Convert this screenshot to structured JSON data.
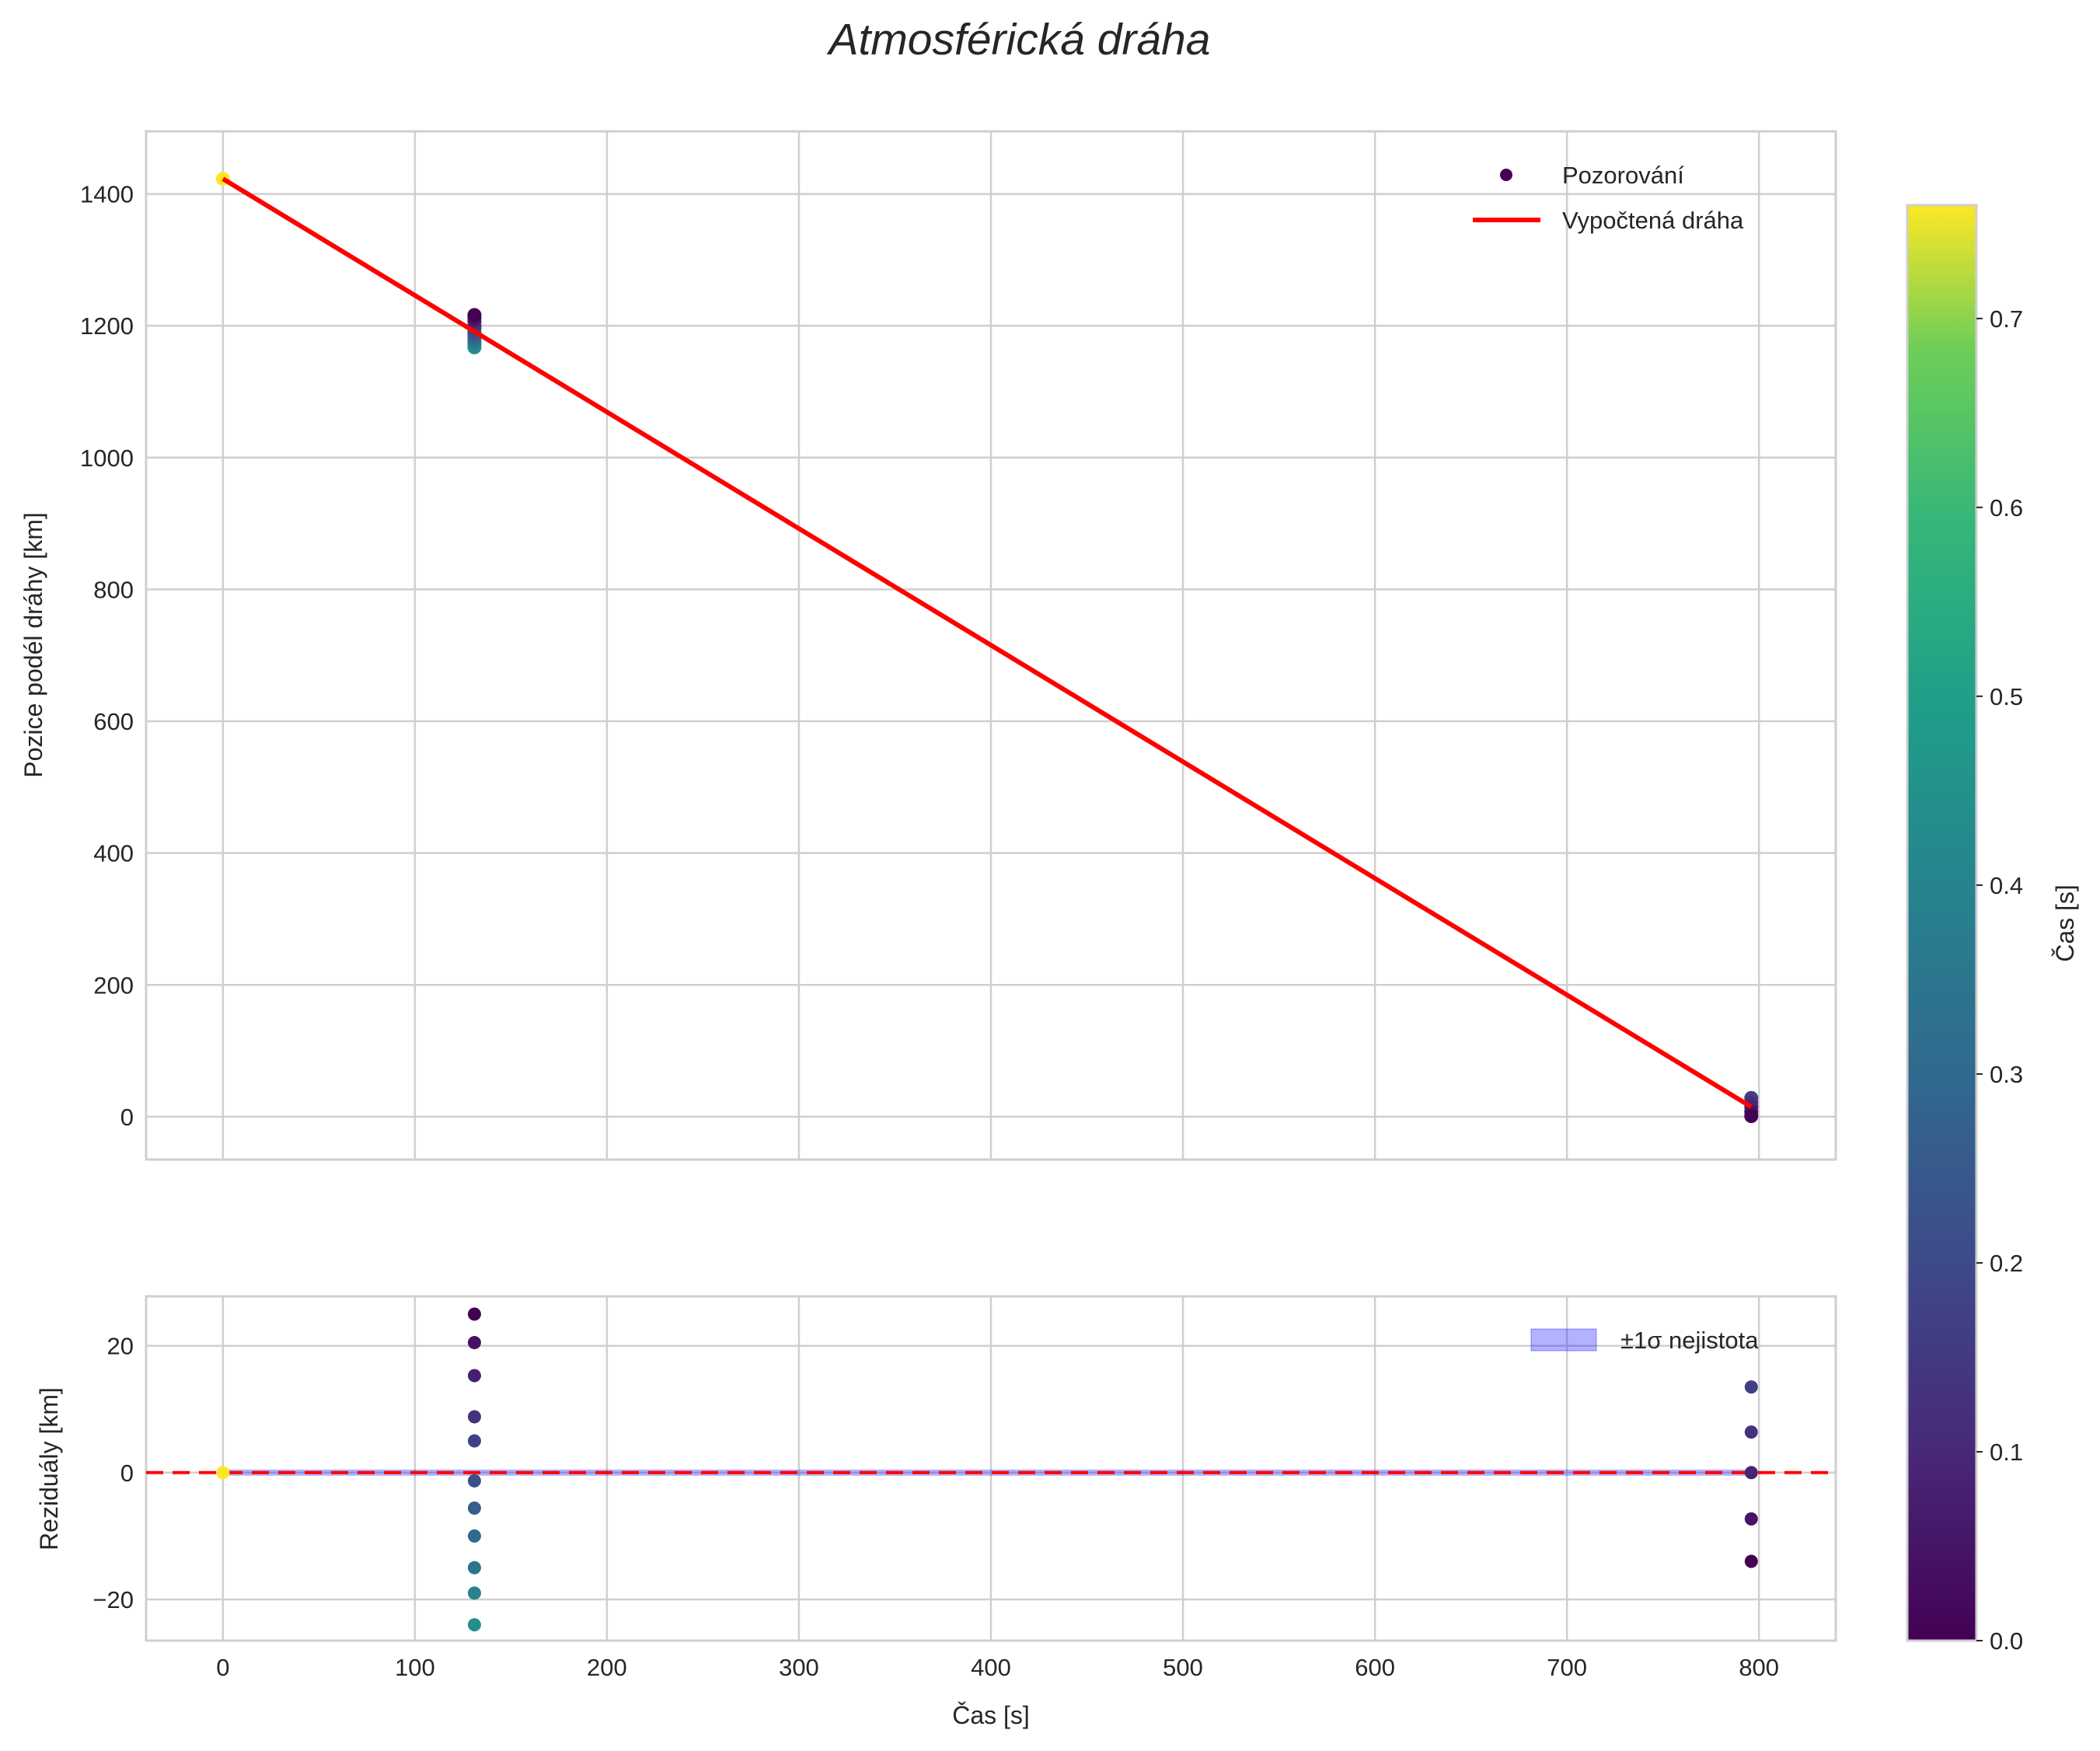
{
  "chart_data": {
    "type": "scatter",
    "title": "Atmosférická dráha",
    "colormap": "viridis",
    "colorbar": {
      "label": "Čas [s]",
      "range": [
        0,
        0.76
      ],
      "ticks": [
        "0.0",
        "0.1",
        "0.2",
        "0.3",
        "0.4",
        "0.5",
        "0.6",
        "0.7"
      ]
    },
    "top": {
      "ylabel": "Pozice podél dráhy [km]",
      "xlim": [
        -40,
        840
      ],
      "ylim": [
        -65,
        1495
      ],
      "yticks": [
        "0",
        "200",
        "400",
        "600",
        "800",
        "1000",
        "1200",
        "1400"
      ],
      "legend": {
        "placement": "top-right",
        "scatter": "Pozorování",
        "line": "Vypočtená dráha"
      },
      "fit_line": {
        "x": [
          0,
          796
        ],
        "y": [
          1423,
          15
        ],
        "color": "#ff0000"
      }
    },
    "bottom": {
      "xlabel": "Čas [s]",
      "ylabel": "Reziduály [km]",
      "xlim": [
        -40,
        840
      ],
      "ylim": [
        -26.5,
        27.8
      ],
      "xticks": [
        "0",
        "100",
        "200",
        "300",
        "400",
        "500",
        "600",
        "700",
        "800"
      ],
      "yticks": [
        "−20",
        "0",
        "20"
      ],
      "legend": {
        "placement": "top-right",
        "band": "±1σ nejistota"
      },
      "zero_line_color": "#ff0000",
      "band_color": "#0000ff"
    },
    "points": [
      {
        "x": 0,
        "r": 0,
        "c": 0.76
      },
      {
        "x": 131,
        "r": 25,
        "c": 0.0
      },
      {
        "x": 131,
        "r": 20.5,
        "c": 0.04
      },
      {
        "x": 131,
        "r": 15.3,
        "c": 0.08
      },
      {
        "x": 131,
        "r": 8.8,
        "c": 0.13
      },
      {
        "x": 131,
        "r": 5,
        "c": 0.17
      },
      {
        "x": 131,
        "r": -1.3,
        "c": 0.22
      },
      {
        "x": 131,
        "r": -5.6,
        "c": 0.26
      },
      {
        "x": 131,
        "r": -10,
        "c": 0.3
      },
      {
        "x": 131,
        "r": -15,
        "c": 0.35
      },
      {
        "x": 131,
        "r": -19,
        "c": 0.39
      },
      {
        "x": 131,
        "r": -24,
        "c": 0.44
      },
      {
        "x": 796,
        "r": 13.5,
        "c": 0.17
      },
      {
        "x": 796,
        "r": 6.4,
        "c": 0.13
      },
      {
        "x": 796,
        "r": 0,
        "c": 0.09
      },
      {
        "x": 796,
        "r": -7.3,
        "c": 0.05
      },
      {
        "x": 796,
        "r": -14,
        "c": 0.0
      }
    ]
  }
}
